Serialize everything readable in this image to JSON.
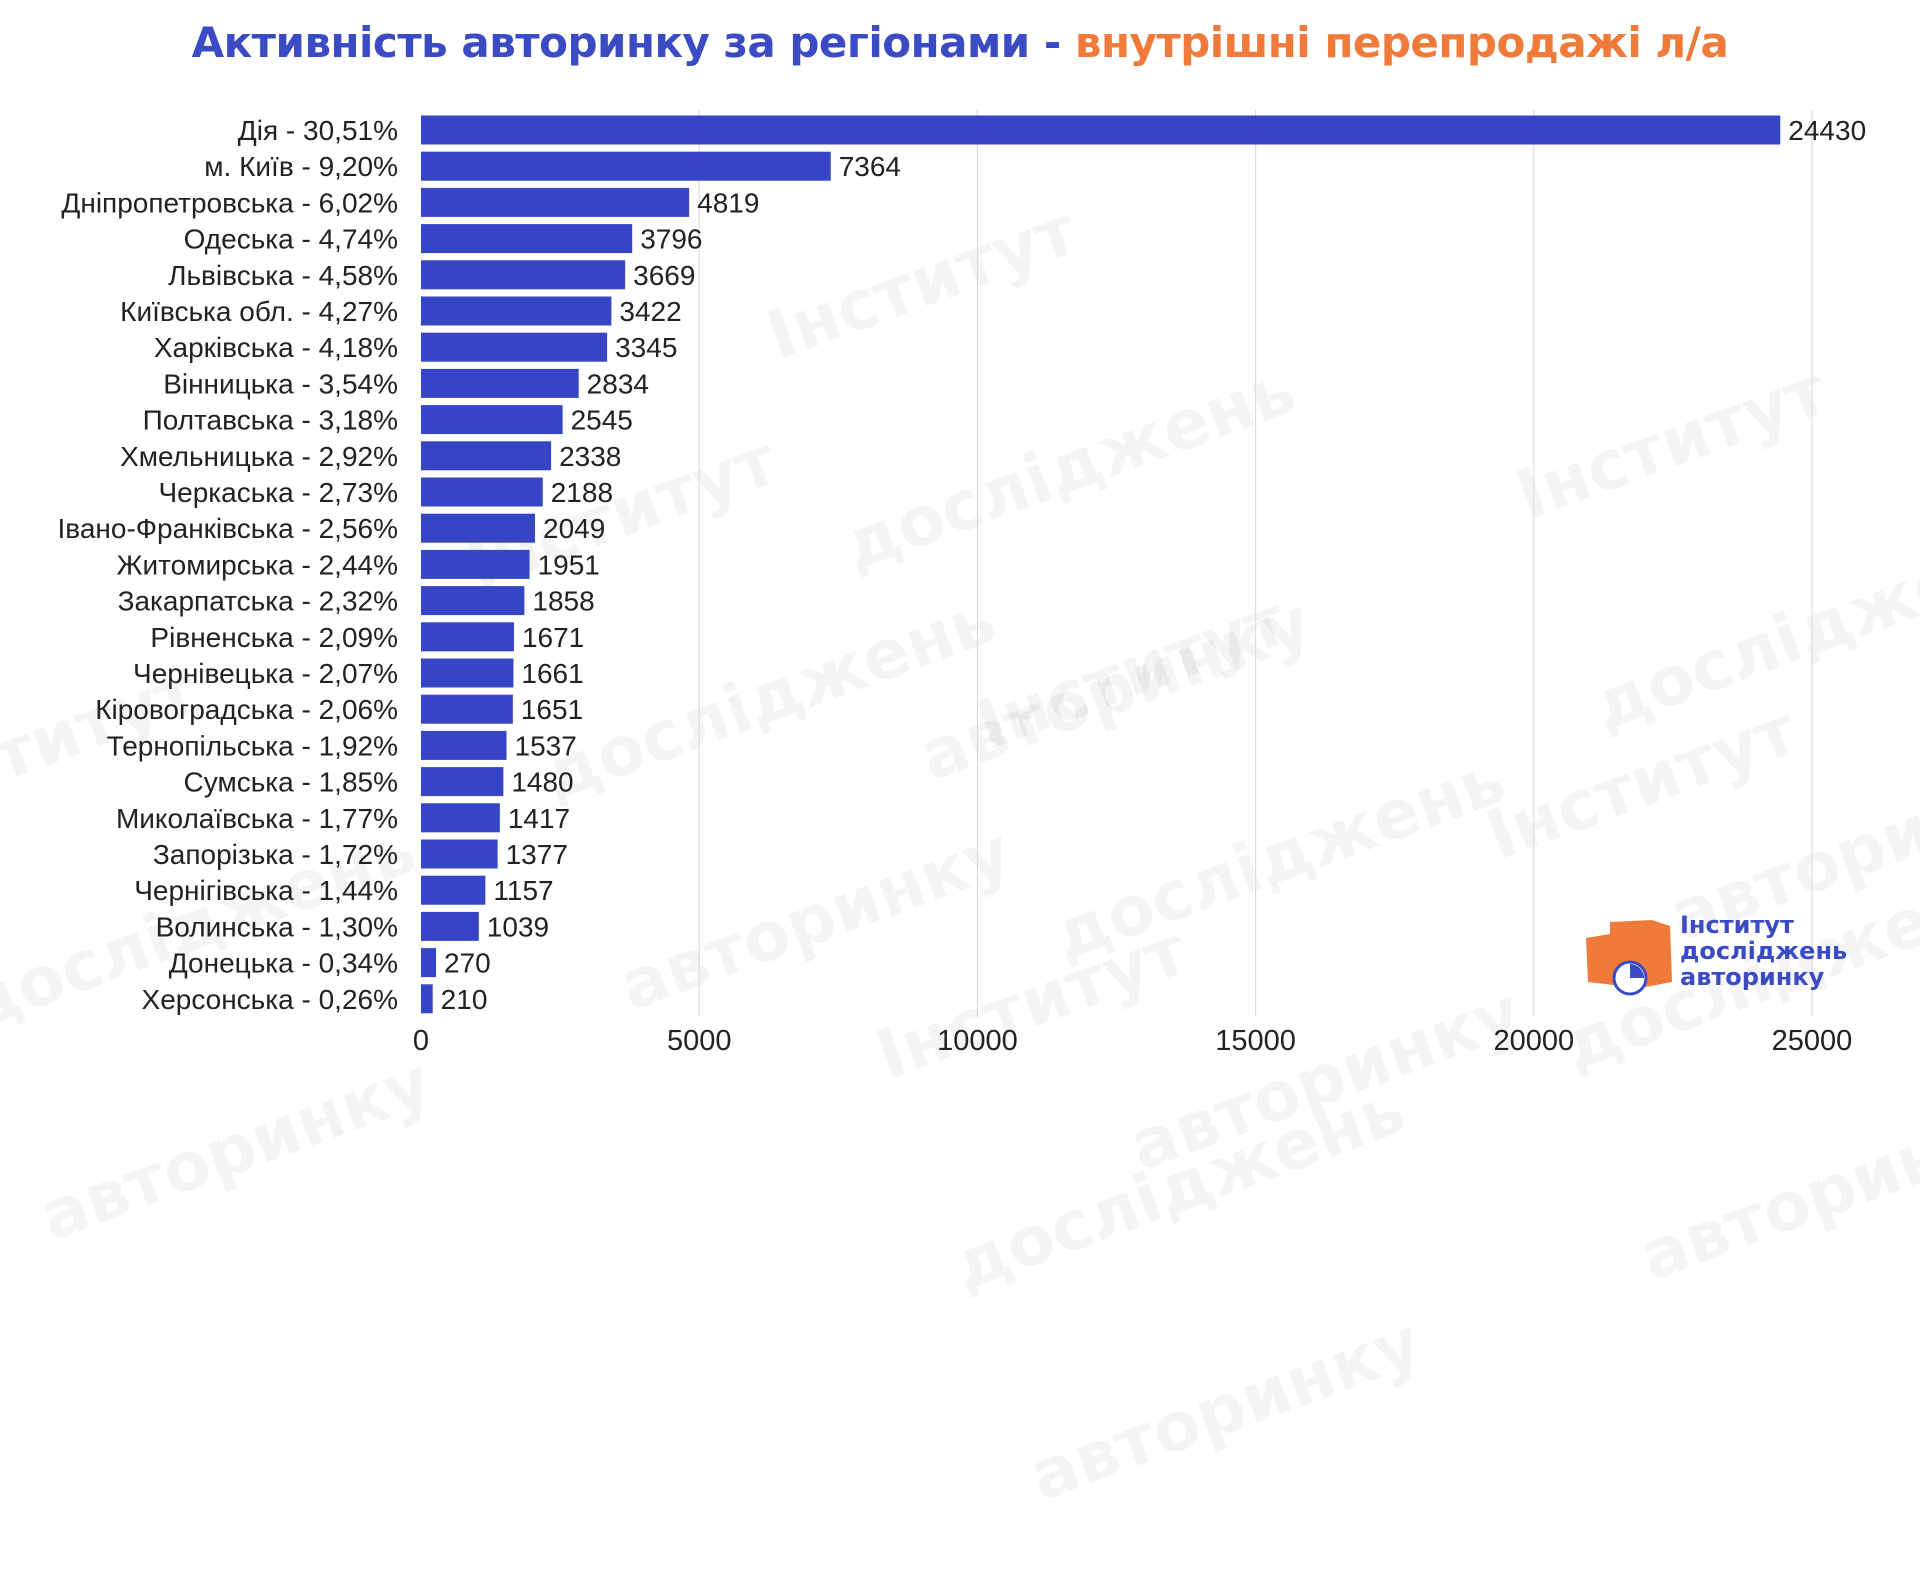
{
  "title": {
    "part1": "Активність авторинку за регіонами - ",
    "part2": "внутрішні перепродажі л/а"
  },
  "logo": {
    "line1": "Інститут",
    "line2": "досліджень",
    "line3": "авторинку"
  },
  "watermark": {
    "line1": "Інститут",
    "line2": "досліджень",
    "line3": "авторинку"
  },
  "colors": {
    "bar": "#3545c6",
    "title_primary": "#3b4bc4",
    "title_accent": "#f07a3a",
    "logo_orange": "#f07a3a",
    "logo_blue": "#3b4bc4",
    "grid": "#dddddd"
  },
  "chart_data": {
    "type": "bar",
    "orientation": "horizontal",
    "categories": [
      "Дія - 30,51%",
      "м. Київ - 9,20%",
      "Дніпропетровська - 6,02%",
      "Одеська - 4,74%",
      "Львівська - 4,58%",
      "Київська обл. - 4,27%",
      "Харківська - 4,18%",
      "Вінницька - 3,54%",
      "Полтавська - 3,18%",
      "Хмельницька - 2,92%",
      "Черкаська - 2,73%",
      "Івано-Франківська - 2,56%",
      "Житомирська - 2,44%",
      "Закарпатська - 2,32%",
      "Рівненська - 2,09%",
      "Чернівецька - 2,07%",
      "Кіровоградська - 2,06%",
      "Тернопільська - 1,92%",
      "Сумська - 1,85%",
      "Миколаївська - 1,77%",
      "Запорізька - 1,72%",
      "Чернігівська - 1,44%",
      "Волинська - 1,30%",
      "Донецька - 0,34%",
      "Херсонська - 0,26%"
    ],
    "values": [
      24430,
      7364,
      4819,
      3796,
      3669,
      3422,
      3345,
      2834,
      2545,
      2338,
      2188,
      2049,
      1951,
      1858,
      1671,
      1661,
      1651,
      1537,
      1480,
      1417,
      1377,
      1157,
      1039,
      270,
      210
    ],
    "xlim": [
      0,
      25000
    ],
    "xticks": [
      0,
      5000,
      10000,
      15000,
      20000,
      25000
    ],
    "grid": true,
    "data_labels": true,
    "xlabel": "",
    "ylabel": ""
  }
}
